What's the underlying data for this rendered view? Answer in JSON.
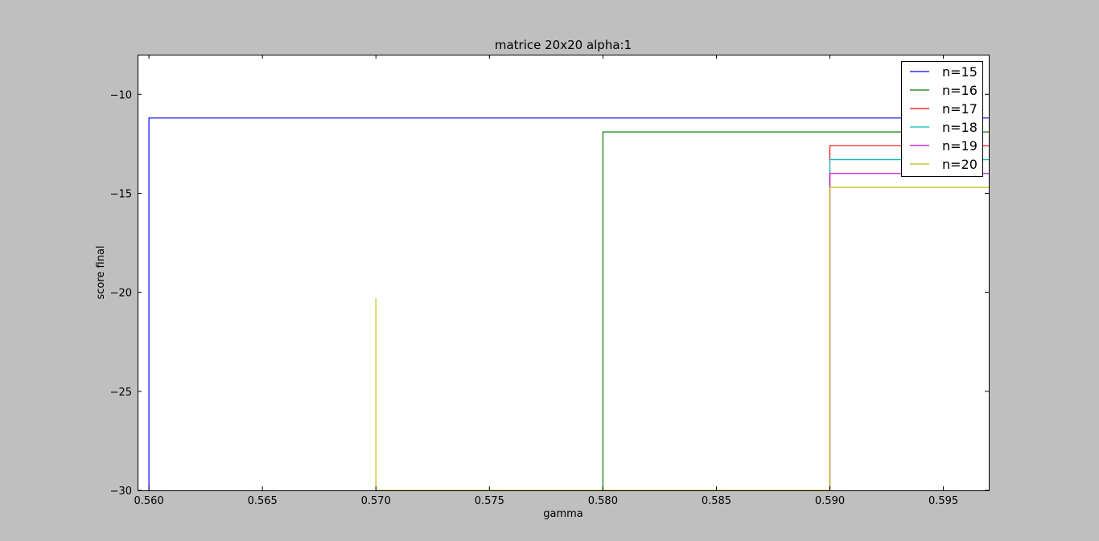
{
  "chart_data": {
    "type": "line",
    "title": "matrice 20x20 alpha:1",
    "xlabel": "gamma",
    "ylabel": "score final",
    "xlim": [
      0.5595,
      0.597
    ],
    "ylim": [
      -30,
      -8
    ],
    "xticks": [
      0.56,
      0.565,
      0.57,
      0.575,
      0.58,
      0.585,
      0.59,
      0.595
    ],
    "xtick_labels": [
      "0.560",
      "0.565",
      "0.570",
      "0.575",
      "0.580",
      "0.585",
      "0.590",
      "0.595"
    ],
    "yticks": [
      -30,
      -25,
      -20,
      -15,
      -10
    ],
    "ytick_labels": [
      "−30",
      "−25",
      "−20",
      "−15",
      "−10"
    ],
    "grid": false,
    "legend_position": "top-right",
    "series": [
      {
        "name": "n=15",
        "color": "#0000ff",
        "points": [
          [
            0.56,
            -30
          ],
          [
            0.56,
            -11.2
          ],
          [
            0.597,
            -11.2
          ]
        ]
      },
      {
        "name": "n=16",
        "color": "#007f00",
        "points": [
          [
            0.58,
            -30
          ],
          [
            0.58,
            -11.9
          ],
          [
            0.597,
            -11.9
          ]
        ]
      },
      {
        "name": "n=17",
        "color": "#ff0000",
        "points": [
          [
            0.59,
            -30
          ],
          [
            0.59,
            -12.6
          ],
          [
            0.597,
            -12.6
          ]
        ]
      },
      {
        "name": "n=18",
        "color": "#00bfbf",
        "points": [
          [
            0.59,
            -30
          ],
          [
            0.59,
            -13.3
          ],
          [
            0.597,
            -13.3
          ]
        ]
      },
      {
        "name": "n=19",
        "color": "#bf00bf",
        "points": [
          [
            0.59,
            -30
          ],
          [
            0.59,
            -14.0
          ],
          [
            0.597,
            -14.0
          ]
        ]
      },
      {
        "name": "n=20",
        "color": "#bfbf00",
        "points": [
          [
            0.57,
            -30
          ],
          [
            0.57,
            -20.3
          ],
          [
            0.57,
            -30
          ],
          [
            0.59,
            -30
          ],
          [
            0.59,
            -14.7
          ],
          [
            0.597,
            -14.7
          ]
        ]
      }
    ]
  }
}
